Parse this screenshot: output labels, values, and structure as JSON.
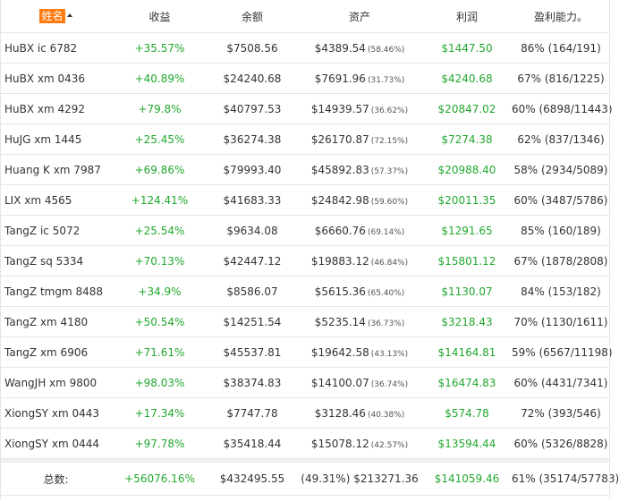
{
  "header": {
    "name_label": "姓名",
    "gain_label": "收益",
    "balance_label": "余额",
    "assets_label": "资产",
    "profit_label": "利润",
    "ability_label": "盈利能力。"
  },
  "colors": {
    "accent": "#ff7a0f",
    "positive": "#22a82f",
    "border": "#e6e6e6"
  },
  "rows": [
    {
      "name": "HuBX ic 6782",
      "gain": "+35.57%",
      "balance": "$7508.56",
      "assets": "$4389.54",
      "assets_pct": "(58.46%)",
      "profit": "$1447.50",
      "ability": "86% (164/191)"
    },
    {
      "name": "HuBX xm 0436",
      "gain": "+40.89%",
      "balance": "$24240.68",
      "assets": "$7691.96",
      "assets_pct": "(31.73%)",
      "profit": "$4240.68",
      "ability": "67% (816/1225)"
    },
    {
      "name": "HuBX xm 4292",
      "gain": "+79.8%",
      "balance": "$40797.53",
      "assets": "$14939.57",
      "assets_pct": "(36.62%)",
      "profit": "$20847.02",
      "ability": "60% (6898/11443)"
    },
    {
      "name": "HuJG xm 1445",
      "gain": "+25.45%",
      "balance": "$36274.38",
      "assets": "$26170.87",
      "assets_pct": "(72.15%)",
      "profit": "$7274.38",
      "ability": "62% (837/1346)"
    },
    {
      "name": "Huang K xm 7987",
      "gain": "+69.86%",
      "balance": "$79993.40",
      "assets": "$45892.83",
      "assets_pct": "(57.37%)",
      "profit": "$20988.40",
      "ability": "58% (2934/5089)"
    },
    {
      "name": "LIX xm 4565",
      "gain": "+124.41%",
      "balance": "$41683.33",
      "assets": "$24842.98",
      "assets_pct": "(59.60%)",
      "profit": "$20011.35",
      "ability": "60% (3487/5786)"
    },
    {
      "name": "TangZ ic 5072",
      "gain": "+25.54%",
      "balance": "$9634.08",
      "assets": "$6660.76",
      "assets_pct": "(69.14%)",
      "profit": "$1291.65",
      "ability": "85% (160/189)"
    },
    {
      "name": "TangZ sq 5334",
      "gain": "+70.13%",
      "balance": "$42447.12",
      "assets": "$19883.12",
      "assets_pct": "(46.84%)",
      "profit": "$15801.12",
      "ability": "67% (1878/2808)"
    },
    {
      "name": "TangZ tmgm 8488",
      "gain": "+34.9%",
      "balance": "$8586.07",
      "assets": "$5615.36",
      "assets_pct": "(65.40%)",
      "profit": "$1130.07",
      "ability": "84% (153/182)"
    },
    {
      "name": "TangZ xm 4180",
      "gain": "+50.54%",
      "balance": "$14251.54",
      "assets": "$5235.14",
      "assets_pct": "(36.73%)",
      "profit": "$3218.43",
      "ability": "70% (1130/1611)"
    },
    {
      "name": "TangZ xm 6906",
      "gain": "+71.61%",
      "balance": "$45537.81",
      "assets": "$19642.58",
      "assets_pct": "(43.13%)",
      "profit": "$14164.81",
      "ability": "59% (6567/11198)"
    },
    {
      "name": "WangJH xm 9800",
      "gain": "+98.03%",
      "balance": "$38374.83",
      "assets": "$14100.07",
      "assets_pct": "(36.74%)",
      "profit": "$16474.83",
      "ability": "60% (4431/7341)"
    },
    {
      "name": "XiongSY xm 0443",
      "gain": "+17.34%",
      "balance": "$7747.78",
      "assets": "$3128.46",
      "assets_pct": "(40.38%)",
      "profit": "$574.78",
      "ability": "72% (393/546)"
    },
    {
      "name": "XiongSY xm 0444",
      "gain": "+97.78%",
      "balance": "$35418.44",
      "assets": "$15078.12",
      "assets_pct": "(42.57%)",
      "profit": "$13594.44",
      "ability": "60% (5326/8828)"
    }
  ],
  "totals": {
    "label": "总数:",
    "gain": "+56076.16%",
    "balance": "$432495.55",
    "assets": "(49.31%) $213271.36",
    "profit": "$141059.46",
    "ability": "61% (35174/57783)"
  }
}
